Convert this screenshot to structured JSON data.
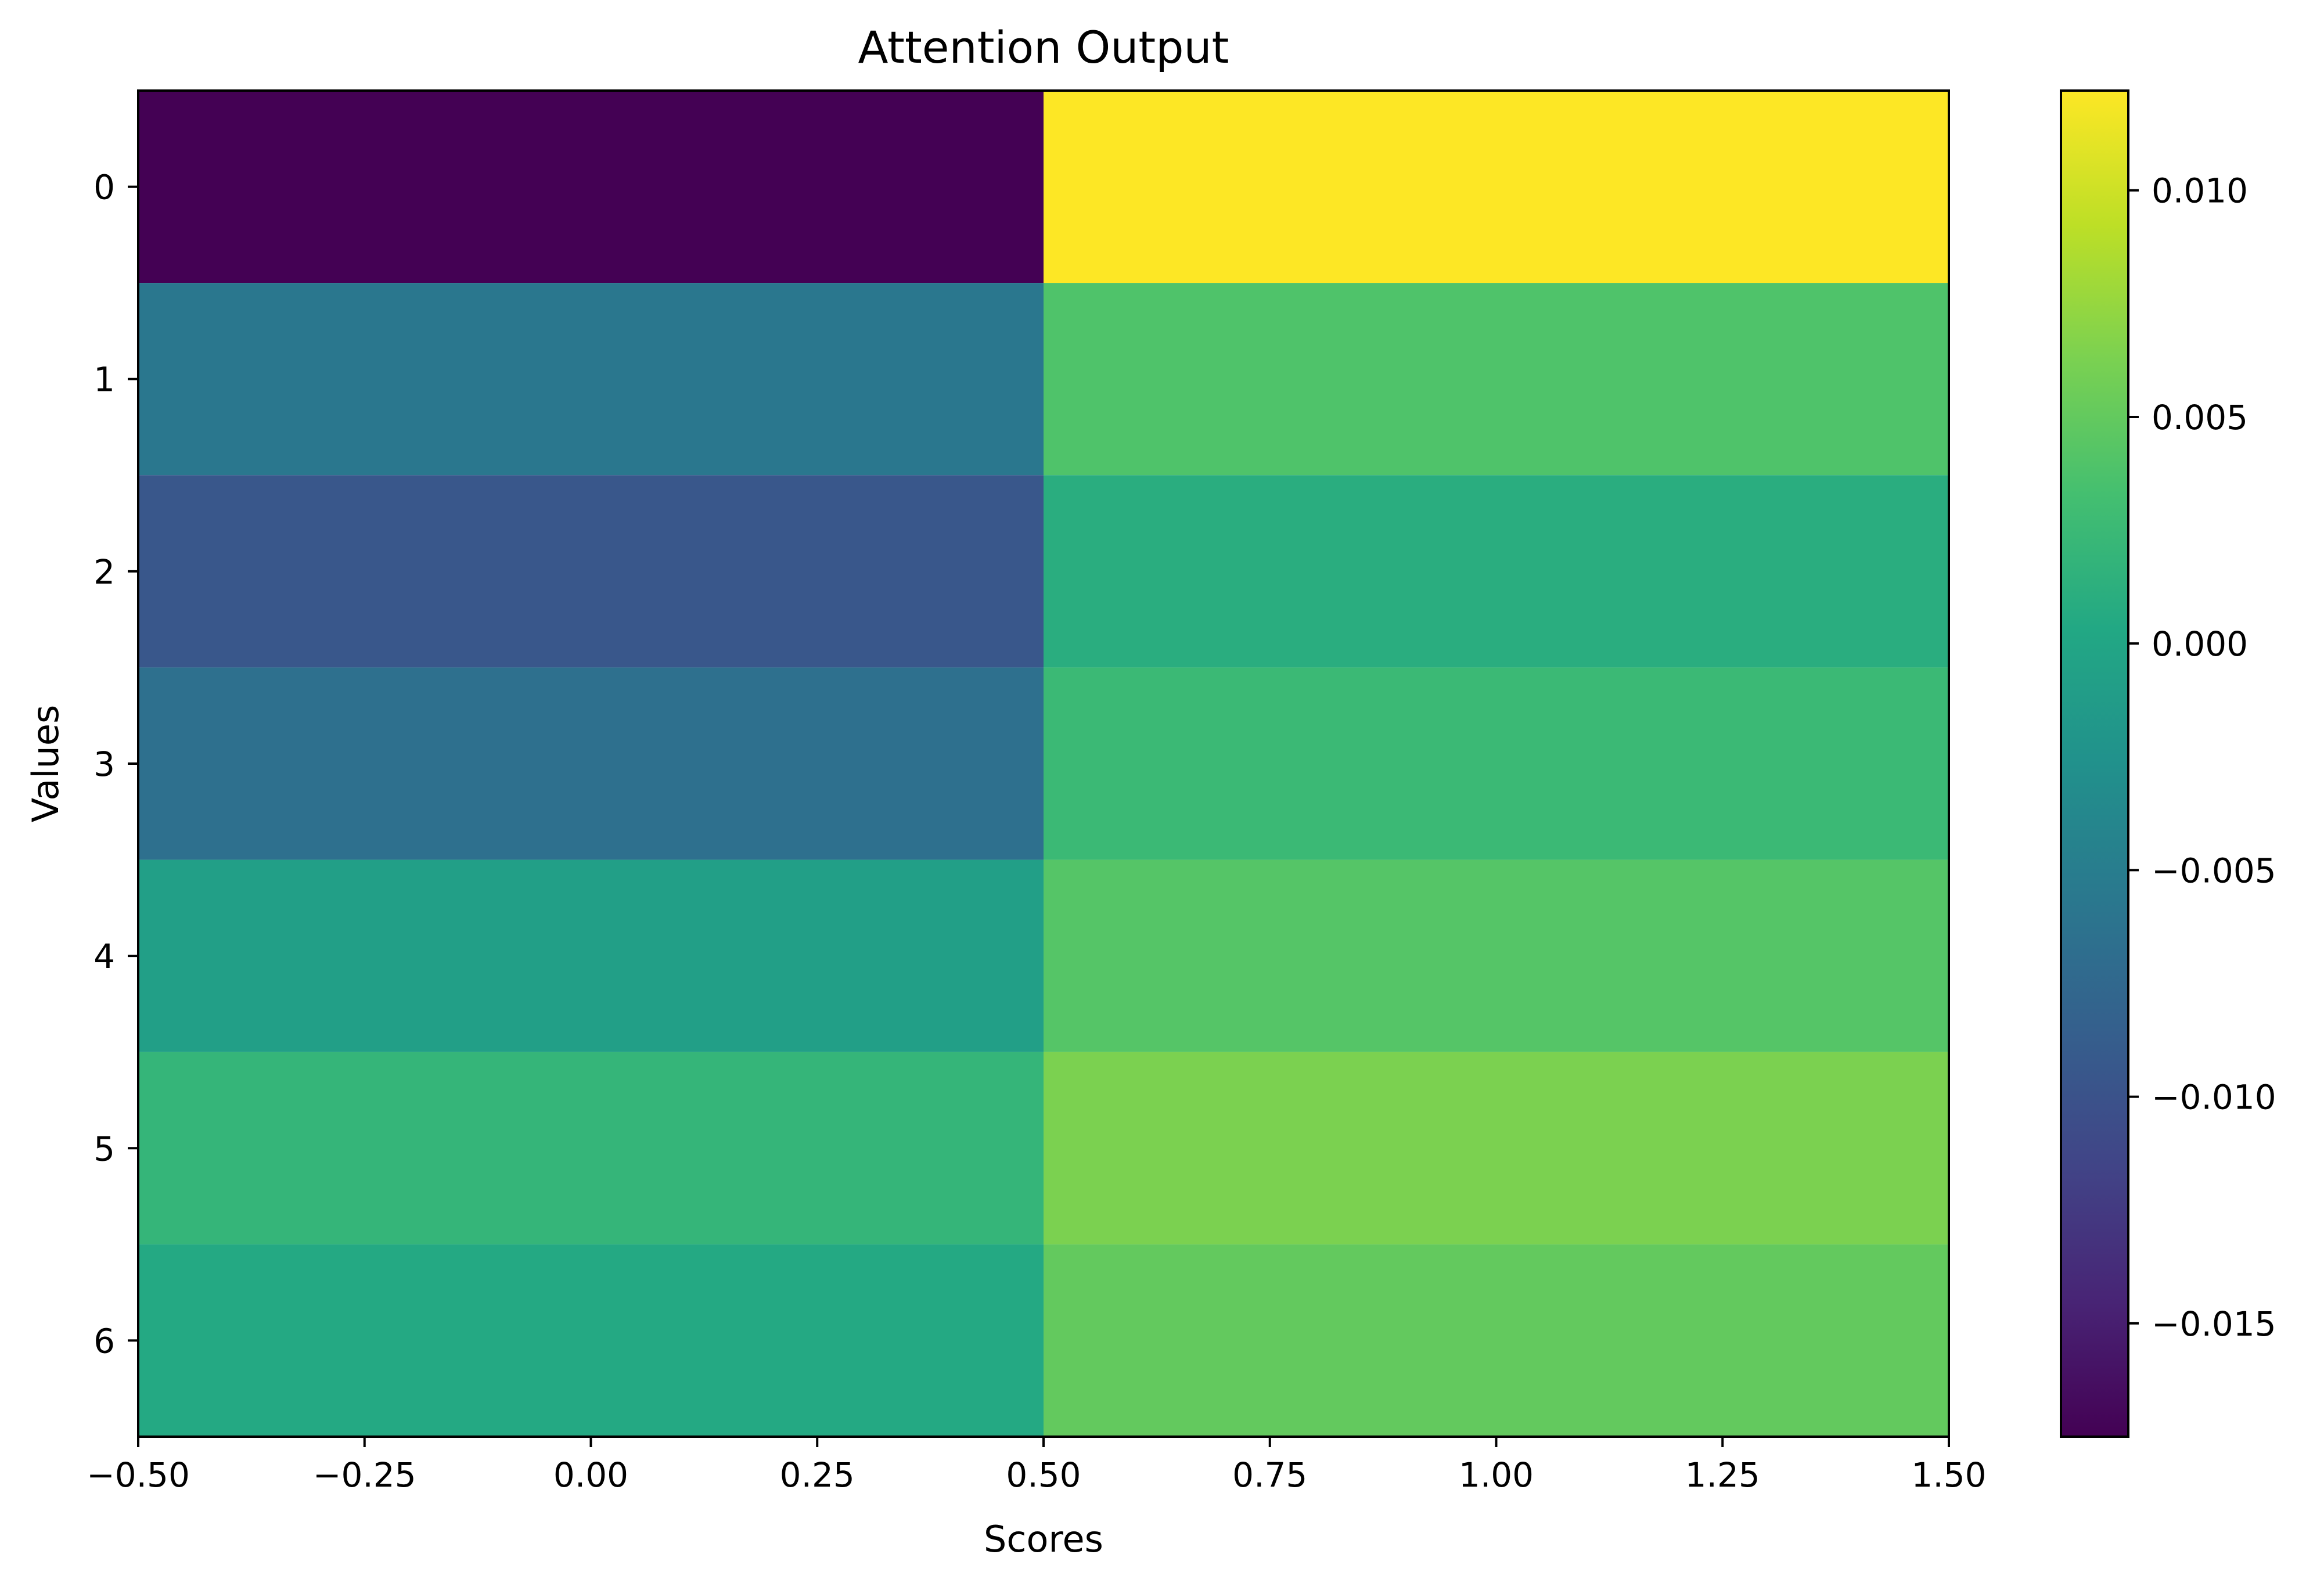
{
  "chart_data": {
    "type": "heatmap",
    "title": "Attention Output",
    "xlabel": "Scores",
    "ylabel": "Values",
    "columns": [
      0,
      1
    ],
    "rows": [
      0,
      1,
      2,
      3,
      4,
      5,
      6
    ],
    "values": [
      [
        -0.0175,
        0.0122
      ],
      [
        -0.0057,
        0.0039
      ],
      [
        -0.0095,
        0.001
      ],
      [
        -0.0066,
        0.0025
      ],
      [
        -0.0008,
        0.0042
      ],
      [
        0.002,
        0.0063
      ],
      [
        0.0005,
        0.005
      ]
    ],
    "xlim": [
      -0.5,
      1.5
    ],
    "ylim": [
      6.5,
      -0.5
    ],
    "xticks": [
      -0.5,
      -0.25,
      0.0,
      0.25,
      0.5,
      0.75,
      1.0,
      1.25,
      1.5
    ],
    "xtick_labels": [
      "−0.50",
      "−0.25",
      "0.00",
      "0.25",
      "0.50",
      "0.75",
      "1.00",
      "1.25",
      "1.50"
    ],
    "yticks": [
      0,
      1,
      2,
      3,
      4,
      5,
      6
    ],
    "ytick_labels": [
      "0",
      "1",
      "2",
      "3",
      "4",
      "5",
      "6"
    ],
    "colormap": "viridis",
    "colorbar": {
      "vmin": -0.0175,
      "vmax": 0.0122,
      "ticks": [
        -0.015,
        -0.01,
        -0.005,
        0.0,
        0.005,
        0.01
      ],
      "tick_labels": [
        "−0.015",
        "−0.010",
        "−0.005",
        "0.000",
        "0.005",
        "0.010"
      ]
    }
  }
}
